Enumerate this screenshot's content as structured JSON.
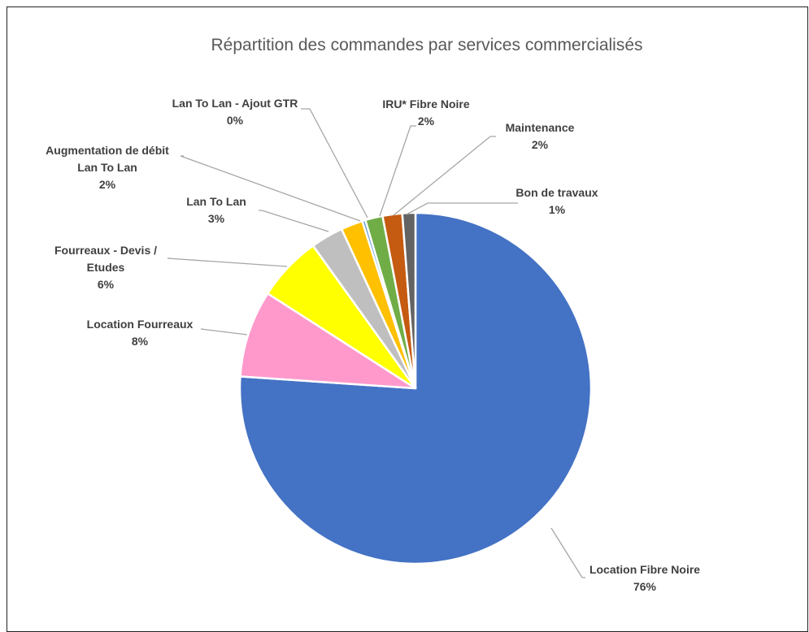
{
  "chart_data": {
    "type": "pie",
    "title": "Répartition des commandes par services commercialisés",
    "slices": [
      {
        "label": "Location Fibre Noire",
        "pct_label": "76%",
        "value": 76,
        "color": "#4472c4"
      },
      {
        "label": "Location Fourreaux",
        "pct_label": "8%",
        "value": 8,
        "color": "#ff99cc"
      },
      {
        "label": "Fourreaux - Devis / Etudes",
        "pct_label": "6%",
        "value": 6,
        "color": "#ffff00"
      },
      {
        "label": "Lan To Lan",
        "pct_label": "3%",
        "value": 3,
        "color": "#bfbfbf"
      },
      {
        "label": "Augmentation de débit Lan To Lan",
        "pct_label": "2%",
        "value": 2,
        "color": "#ffc000"
      },
      {
        "label": "Lan To Lan - Ajout GTR",
        "pct_label": "0%",
        "value": 0.3,
        "color": "#5b9bd5"
      },
      {
        "label": "IRU* Fibre Noire",
        "pct_label": "2%",
        "value": 1.6,
        "color": "#70ad47"
      },
      {
        "label": "Maintenance",
        "pct_label": "2%",
        "value": 1.8,
        "color": "#c55a11"
      },
      {
        "label": "Bon de travaux",
        "pct_label": "1%",
        "value": 1.2,
        "color": "#636363"
      }
    ],
    "legend": "none"
  }
}
